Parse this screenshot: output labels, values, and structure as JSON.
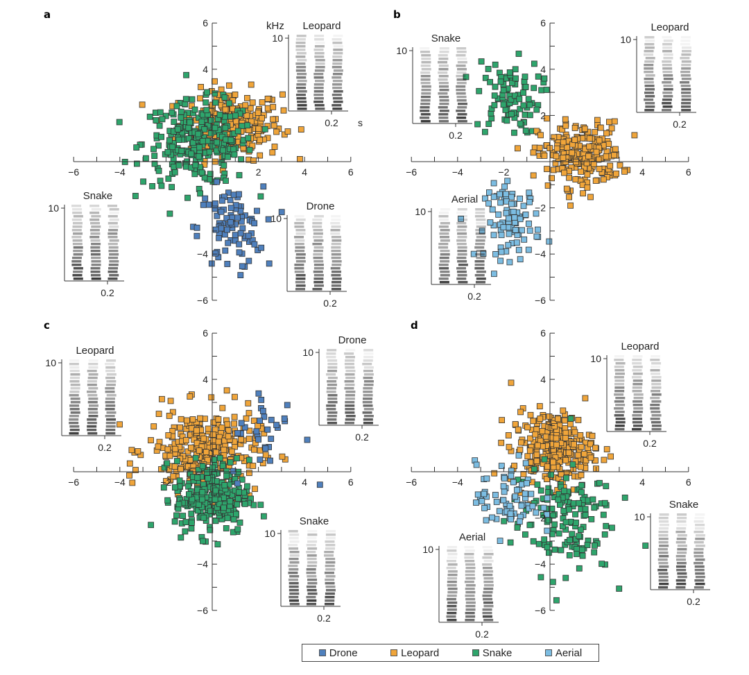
{
  "colors": {
    "Drone": "#4f80bd",
    "Leopard": "#f0a53a",
    "Snake": "#2ea56c",
    "Aerial": "#7cbde2"
  },
  "legend": [
    {
      "label": "Drone",
      "color": "#4f80bd"
    },
    {
      "label": "Leopard",
      "color": "#f0a53a"
    },
    {
      "label": "Snake",
      "color": "#2ea56c"
    },
    {
      "label": "Aerial",
      "color": "#7cbde2"
    }
  ],
  "chart_data": [
    {
      "panel": "a",
      "type": "scatter",
      "xlim": [
        -6,
        6
      ],
      "ylim": [
        -6,
        6
      ],
      "xticks": [
        "−6",
        "−4",
        "",
        "2",
        "4",
        "6"
      ],
      "xtick_values": [
        -6,
        -4,
        -2,
        2,
        4,
        6
      ],
      "yticks": [
        "6",
        "4",
        "",
        "",
        "−4",
        "−6"
      ],
      "ytick_values": [
        6,
        4,
        2,
        -2,
        -4,
        -6
      ],
      "series": [
        {
          "name": "Leopard",
          "center": [
            0.8,
            1.6
          ],
          "spread": [
            1.1,
            0.75
          ],
          "n": 260
        },
        {
          "name": "Snake",
          "center": [
            -0.6,
            0.8
          ],
          "spread": [
            1.2,
            0.9
          ],
          "n": 260
        },
        {
          "name": "Drone",
          "center": [
            0.8,
            -2.9
          ],
          "spread": [
            0.7,
            0.9
          ],
          "n": 90
        }
      ],
      "insets": [
        {
          "title": "Leopard",
          "ylabel_unit": "kHz",
          "ytick": "10",
          "xtick": "0.2",
          "xunit": "s",
          "pos": "top-right"
        },
        {
          "title": "Snake",
          "ytick": "10",
          "xtick": "0.2",
          "pos": "bottom-left"
        },
        {
          "title": "Drone",
          "ytick": "10",
          "xtick": "0.2",
          "pos": "bottom-right"
        }
      ]
    },
    {
      "panel": "b",
      "type": "scatter",
      "xlim": [
        -6,
        6
      ],
      "ylim": [
        -6,
        6
      ],
      "xticks": [
        "−6",
        "−4",
        "−2",
        "",
        "4",
        "6"
      ],
      "xtick_values": [
        -6,
        -4,
        -2,
        2,
        4,
        6
      ],
      "yticks": [
        "6",
        "4",
        "2",
        "−2",
        "−4",
        "−6"
      ],
      "ytick_values": [
        6,
        4,
        2,
        -2,
        -4,
        -6
      ],
      "series": [
        {
          "name": "Snake",
          "center": [
            -1.8,
            2.8
          ],
          "spread": [
            0.7,
            0.8
          ],
          "n": 90
        },
        {
          "name": "Leopard",
          "center": [
            1.3,
            0.3
          ],
          "spread": [
            0.9,
            0.7
          ],
          "n": 230
        },
        {
          "name": "Aerial",
          "center": [
            -1.6,
            -2.6
          ],
          "spread": [
            0.6,
            0.8
          ],
          "n": 90
        }
      ],
      "insets": [
        {
          "title": "Snake",
          "ytick": "10",
          "xtick": "0.2",
          "pos": "top-left"
        },
        {
          "title": "Leopard",
          "ytick": "10",
          "xtick": "0.2",
          "pos": "top-right"
        },
        {
          "title": "Aerial",
          "ytick": "10",
          "xtick": "0.2",
          "pos": "bottom-left"
        }
      ]
    },
    {
      "panel": "c",
      "type": "scatter",
      "xlim": [
        -6,
        6
      ],
      "ylim": [
        -6,
        6
      ],
      "xticks": [
        "−6",
        "−4",
        "−2",
        "",
        "4",
        "6"
      ],
      "xtick_values": [
        -6,
        -4,
        -2,
        2,
        4,
        6
      ],
      "yticks": [
        "6",
        "4",
        "",
        "",
        "−4",
        "−6"
      ],
      "ytick_values": [
        6,
        4,
        2,
        -2,
        -4,
        -6
      ],
      "series": [
        {
          "name": "Leopard",
          "center": [
            -0.4,
            0.9
          ],
          "spread": [
            1.2,
            0.9
          ],
          "n": 300
        },
        {
          "name": "Snake",
          "center": [
            0.0,
            -1.1
          ],
          "spread": [
            0.8,
            0.8
          ],
          "n": 250
        },
        {
          "name": "Drone",
          "center": [
            2.4,
            1.6
          ],
          "spread": [
            0.8,
            1.0
          ],
          "n": 30
        }
      ],
      "insets": [
        {
          "title": "Leopard",
          "ytick": "10",
          "xtick": "0.2",
          "pos": "top-left"
        },
        {
          "title": "Drone",
          "ytick": "10",
          "xtick": "0.2",
          "pos": "top-right"
        },
        {
          "title": "Snake",
          "ytick": "10",
          "xtick": "0.2",
          "pos": "bottom-right"
        }
      ]
    },
    {
      "panel": "d",
      "type": "scatter",
      "xlim": [
        -6,
        6
      ],
      "ylim": [
        -6,
        6
      ],
      "xticks": [
        "−6",
        "−4",
        "",
        "",
        "4",
        "6"
      ],
      "xtick_values": [
        -6,
        -4,
        -2,
        2,
        4,
        6
      ],
      "yticks": [
        "6",
        "4",
        "",
        "−2",
        "−4",
        "−6"
      ],
      "ytick_values": [
        6,
        4,
        2,
        -2,
        -4,
        -6
      ],
      "series": [
        {
          "name": "Leopard",
          "center": [
            0.1,
            1.0
          ],
          "spread": [
            0.9,
            0.8
          ],
          "n": 260
        },
        {
          "name": "Snake",
          "center": [
            0.5,
            -2.0
          ],
          "spread": [
            1.1,
            1.2
          ],
          "n": 150
        },
        {
          "name": "Aerial",
          "center": [
            -1.8,
            -1.2
          ],
          "spread": [
            0.7,
            0.8
          ],
          "n": 70
        }
      ],
      "insets": [
        {
          "title": "Leopard",
          "ytick": "10",
          "xtick": "0.2",
          "pos": "top-right"
        },
        {
          "title": "Aerial",
          "ytick": "10",
          "xtick": "0.2",
          "pos": "bottom-left"
        },
        {
          "title": "Snake",
          "ytick": "10",
          "xtick": "0.2",
          "pos": "bottom-right"
        }
      ]
    }
  ]
}
